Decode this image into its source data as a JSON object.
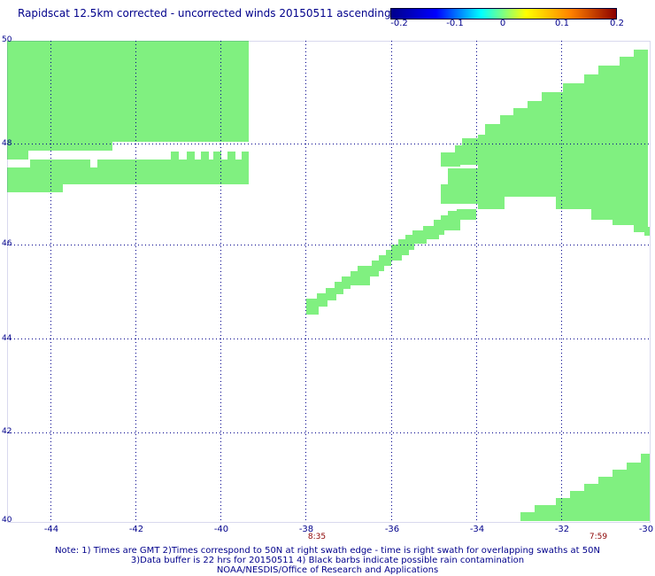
{
  "header": {
    "title": "Rapidscat 12.5km corrected - uncorrected winds 20150511 ascending"
  },
  "colorbar": {
    "tick_labels": [
      "-0.2",
      "-0.1",
      "0",
      "0.1",
      "0.2"
    ],
    "colors": [
      "#00008b",
      "#0000ff",
      "#00ffff",
      "#ffff00",
      "#ff8000",
      "#8b0000"
    ]
  },
  "map": {
    "lat_labels": [
      "50",
      "48",
      "46",
      "44",
      "42",
      "40"
    ],
    "lon_labels": [
      "-44",
      "-42",
      "-40",
      "-38",
      "-36",
      "-34",
      "-32",
      "-30"
    ],
    "time_labels": [
      "8:35",
      "7:59"
    ],
    "data_color": "#80f080",
    "grid_color": "#00008b"
  },
  "notes": {
    "line1": "Note: 1) Times are GMT 2)Times correspond to 50N at right swath edge - time is right swath for overlapping swaths at 50N",
    "line2": "3)Data buffer is 22 hrs for 20150511 4) Black barbs indicate possible rain contamination",
    "line3": "NOAA/NESDIS/Office of Research and Applications"
  }
}
